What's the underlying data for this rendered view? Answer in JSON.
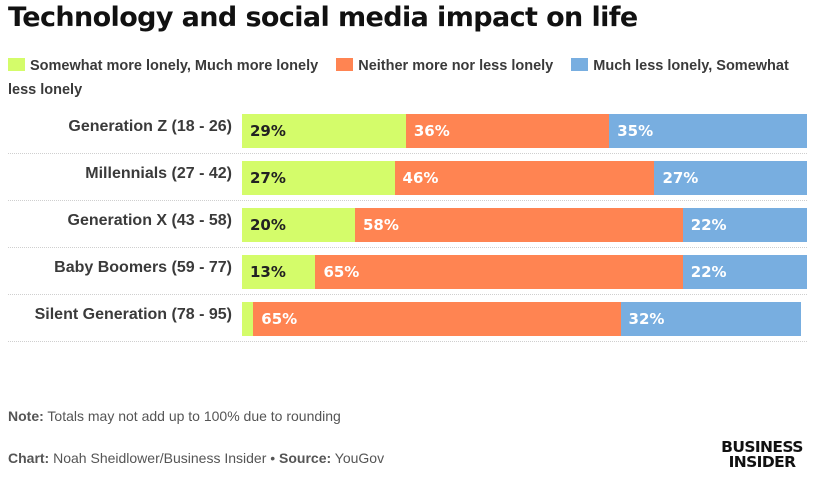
{
  "chart_data": {
    "type": "bar",
    "orientation": "horizontal",
    "stacked": true,
    "title": "Technology and social media impact on life",
    "categories": [
      "Generation Z (18 - 26)",
      "Millennials (27 - 42)",
      "Generation X (43 - 58)",
      "Baby Boomers (59 - 77)",
      "Silent Generation (78 - 95)"
    ],
    "series": [
      {
        "name": "Somewhat more lonely, Much more lonely",
        "color": "#d4fc6a",
        "label_color": "#222222",
        "values": [
          29,
          27,
          20,
          13,
          2
        ],
        "labels": [
          "29%",
          "27%",
          "20%",
          "13%",
          ""
        ]
      },
      {
        "name": "Neither more nor less lonely",
        "color": "#ff8452",
        "label_color": "#ffffff",
        "values": [
          36,
          46,
          58,
          65,
          65
        ],
        "labels": [
          "36%",
          "46%",
          "58%",
          "65%",
          "65%"
        ]
      },
      {
        "name": "Much less lonely, Somewhat less lonely",
        "color": "#78aee0",
        "label_color": "#ffffff",
        "values": [
          35,
          27,
          22,
          22,
          32
        ],
        "labels": [
          "35%",
          "27%",
          "22%",
          "22%",
          "32%"
        ]
      }
    ],
    "xlim": [
      0,
      100
    ],
    "xlabel": "",
    "ylabel": "",
    "grid": false,
    "legend_position": "top"
  },
  "legend": [
    {
      "label": "Somewhat more lonely, Much more lonely",
      "color": "#d4fc6a"
    },
    {
      "label": "Neither more nor less lonely",
      "color": "#ff8452"
    },
    {
      "label": "Much less lonely, Somewhat less lonely",
      "color": "#78aee0"
    }
  ],
  "footer": {
    "note_label": "Note:",
    "note_text": " Totals may not add up to 100% due to rounding",
    "chart_label": "Chart:",
    "chart_text": " Noah Sheidlower/Business Insider • ",
    "source_label": "Source:",
    "source_text": " YouGov"
  },
  "logo": {
    "line1": "BUSINESS",
    "line2": "INSIDER"
  }
}
